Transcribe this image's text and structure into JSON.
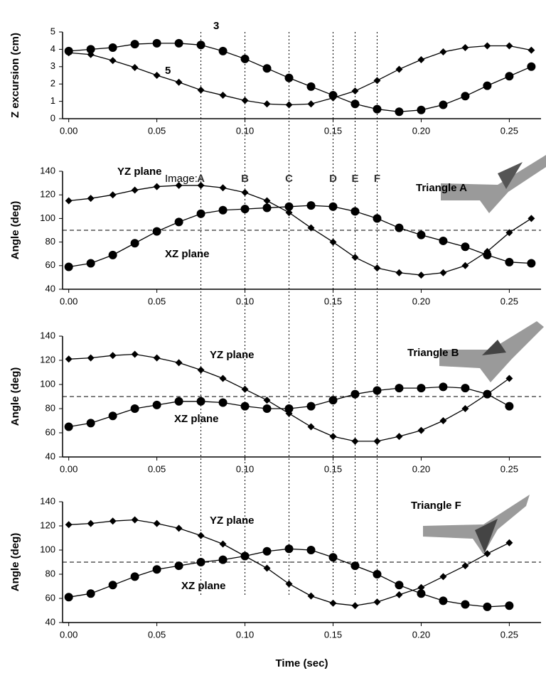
{
  "chart_data": [
    {
      "type": "line",
      "ylabel": "Z excursion (cm)",
      "x": [
        0,
        0.0125,
        0.025,
        0.0375,
        0.05,
        0.0625,
        0.075,
        0.0875,
        0.1,
        0.1125,
        0.125,
        0.1375,
        0.15,
        0.1625,
        0.175,
        0.1875,
        0.2,
        0.2125,
        0.225,
        0.2375,
        0.25,
        0.2625
      ],
      "series": [
        {
          "name": "3",
          "marker": "circle",
          "color": "#000000",
          "values": [
            3.9,
            4.0,
            4.1,
            4.3,
            4.35,
            4.35,
            4.25,
            3.9,
            3.45,
            2.9,
            2.35,
            1.85,
            1.35,
            0.85,
            0.55,
            0.4,
            0.5,
            0.8,
            1.3,
            1.9,
            2.45,
            3.0
          ]
        },
        {
          "name": "5",
          "marker": "diamond",
          "color": "#000000",
          "values": [
            3.8,
            3.7,
            3.35,
            2.95,
            2.5,
            2.1,
            1.65,
            1.35,
            1.05,
            0.85,
            0.8,
            0.85,
            1.2,
            1.6,
            2.2,
            2.85,
            3.4,
            3.85,
            4.1,
            4.2,
            4.2,
            3.95
          ]
        }
      ],
      "xlim": [
        -0.0035,
        0.268
      ],
      "xticks": [
        {
          "value": 0,
          "label": "0.00"
        },
        {
          "value": 0.05,
          "label": "0.05"
        },
        {
          "value": 0.1,
          "label": "0.10"
        },
        {
          "value": 0.15,
          "label": "0.15"
        },
        {
          "value": 0.2,
          "label": "0.20"
        },
        {
          "value": 0.25,
          "label": "0.25"
        }
      ],
      "ylim": [
        0,
        5
      ],
      "yticks": [
        0,
        1,
        2,
        3,
        4,
        5
      ]
    },
    {
      "type": "line",
      "ylabel": "Angle (deg)",
      "annotation": "Triangle A",
      "reference_line": 90,
      "image_markers": {
        "label": "Image:",
        "names": [
          "A",
          "B",
          "C",
          "D",
          "E",
          "F"
        ],
        "x": [
          0.075,
          0.1,
          0.125,
          0.15,
          0.1625,
          0.175
        ]
      },
      "x": [
        0,
        0.0125,
        0.025,
        0.0375,
        0.05,
        0.0625,
        0.075,
        0.0875,
        0.1,
        0.1125,
        0.125,
        0.1375,
        0.15,
        0.1625,
        0.175,
        0.1875,
        0.2,
        0.2125,
        0.225,
        0.2375,
        0.25,
        0.2625
      ],
      "series": [
        {
          "name": "YZ plane",
          "marker": "diamond",
          "color": "#000000",
          "values": [
            115,
            117,
            120,
            124,
            127,
            128,
            128,
            126,
            122,
            115,
            105,
            92,
            80,
            67,
            58,
            54,
            52,
            54,
            60,
            72,
            88,
            100
          ]
        },
        {
          "name": "XZ plane",
          "marker": "circle",
          "color": "#000000",
          "values": [
            59,
            62,
            69,
            79,
            89,
            97,
            104,
            107,
            108,
            109,
            110,
            111,
            110,
            106,
            100,
            92,
            86,
            81,
            76,
            69,
            63,
            62
          ]
        }
      ],
      "xlim": [
        -0.0035,
        0.268
      ],
      "xticks": [
        {
          "value": 0,
          "label": "0.00"
        },
        {
          "value": 0.05,
          "label": "0.05"
        },
        {
          "value": 0.1,
          "label": "0.10"
        },
        {
          "value": 0.15,
          "label": "0.15"
        },
        {
          "value": 0.2,
          "label": "0.20"
        },
        {
          "value": 0.25,
          "label": "0.25"
        }
      ],
      "ylim": [
        40,
        140
      ],
      "yticks": [
        40,
        60,
        80,
        100,
        120,
        140
      ]
    },
    {
      "type": "line",
      "ylabel": "Angle (deg)",
      "annotation": "Triangle B",
      "reference_line": 90,
      "x": [
        0,
        0.0125,
        0.025,
        0.0375,
        0.05,
        0.0625,
        0.075,
        0.0875,
        0.1,
        0.1125,
        0.125,
        0.1375,
        0.15,
        0.1625,
        0.175,
        0.1875,
        0.2,
        0.2125,
        0.225,
        0.2375,
        0.25
      ],
      "series": [
        {
          "name": "YZ plane",
          "marker": "diamond",
          "color": "#000000",
          "values": [
            121,
            122,
            124,
            125,
            122,
            118,
            112,
            105,
            96,
            87,
            76,
            65,
            57,
            53,
            53,
            57,
            62,
            70,
            80,
            92,
            105
          ]
        },
        {
          "name": "XZ plane",
          "marker": "circle",
          "color": "#000000",
          "values": [
            65,
            68,
            74,
            80,
            83,
            86,
            86,
            85,
            82,
            80,
            80,
            82,
            87,
            92,
            95,
            97,
            97,
            98,
            97,
            92,
            82
          ]
        }
      ],
      "xlim": [
        -0.0035,
        0.268
      ],
      "xticks": [
        {
          "value": 0,
          "label": "0.00"
        },
        {
          "value": 0.05,
          "label": "0.05"
        },
        {
          "value": 0.1,
          "label": "0.10"
        },
        {
          "value": 0.15,
          "label": "0.15"
        },
        {
          "value": 0.2,
          "label": "0.20"
        },
        {
          "value": 0.25,
          "label": "0.25"
        }
      ],
      "ylim": [
        40,
        140
      ],
      "yticks": [
        40,
        60,
        80,
        100,
        120,
        140
      ]
    },
    {
      "type": "line",
      "ylabel": "Angle (deg)",
      "xlabel": "Time (sec)",
      "annotation": "Triangle F",
      "reference_line": 90,
      "x": [
        0,
        0.0125,
        0.025,
        0.0375,
        0.05,
        0.0625,
        0.075,
        0.0875,
        0.1,
        0.1125,
        0.125,
        0.1375,
        0.15,
        0.1625,
        0.175,
        0.1875,
        0.2,
        0.2125,
        0.225,
        0.2375,
        0.25
      ],
      "series": [
        {
          "name": "YZ plane",
          "marker": "diamond",
          "color": "#000000",
          "values": [
            121,
            122,
            124,
            125,
            122,
            118,
            112,
            105,
            95,
            85,
            72,
            62,
            56,
            54,
            57,
            63,
            69,
            78,
            87,
            97,
            106
          ]
        },
        {
          "name": "XZ plane",
          "marker": "circle",
          "color": "#000000",
          "values": [
            61,
            64,
            71,
            78,
            84,
            87,
            90,
            92,
            95,
            99,
            101,
            100,
            94,
            87,
            80,
            71,
            64,
            58,
            55,
            53,
            54
          ]
        }
      ],
      "xlim": [
        -0.0035,
        0.268
      ],
      "xticks": [
        {
          "value": 0,
          "label": "0.00"
        },
        {
          "value": 0.05,
          "label": "0.05"
        },
        {
          "value": 0.1,
          "label": "0.10"
        },
        {
          "value": 0.15,
          "label": "0.15"
        },
        {
          "value": 0.2,
          "label": "0.20"
        },
        {
          "value": 0.25,
          "label": "0.25"
        }
      ],
      "ylim": [
        40,
        140
      ],
      "yticks": [
        40,
        60,
        80,
        100,
        120,
        140
      ]
    }
  ]
}
